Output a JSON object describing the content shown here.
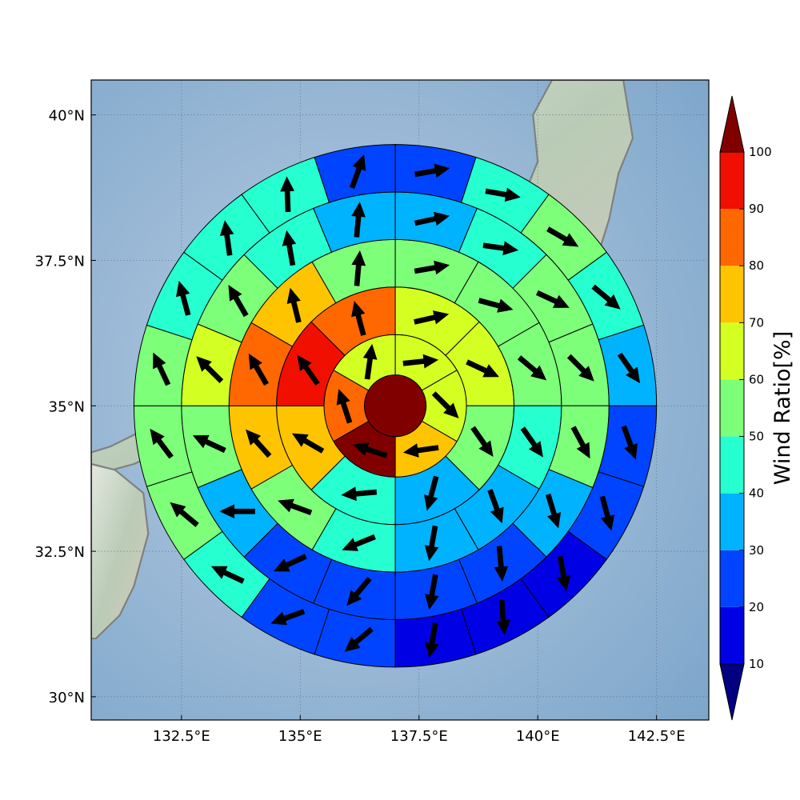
{
  "chart_data": {
    "type": "heatmap",
    "title": "",
    "map": {
      "lon_range": [
        130.6,
        143.6
      ],
      "lat_range": [
        29.6,
        40.6
      ],
      "center": [
        137.0,
        35.0
      ],
      "x_ticks": [
        132.5,
        135.0,
        137.5,
        140.0,
        142.5
      ],
      "x_tick_labels": [
        "132.5°E",
        "135°E",
        "137.5°E",
        "140°E",
        "142.5°E"
      ],
      "y_ticks": [
        30.0,
        32.5,
        35.0,
        37.5,
        40.0
      ],
      "y_tick_labels": [
        "30°N",
        "32.5°N",
        "35°N",
        "37.5°N",
        "40°N"
      ],
      "grid": true,
      "grid_style": "dotted",
      "background": "shaded relief",
      "coastline_color": "#808080"
    },
    "rings": [
      {
        "inner_radius_deg": 0.0,
        "outer_radius_deg": 0.65,
        "sectors": 1,
        "values": [
          100
        ],
        "arrow_dirs": [],
        "arrow_lengths": []
      },
      {
        "inner_radius_deg": 0.65,
        "outer_radius_deg": 1.5,
        "sectors": 6,
        "values": [
          63,
          63,
          73,
          100,
          83,
          63
        ],
        "arrow_dirs": [
          84,
          135,
          262,
          288,
          342,
          8
        ],
        "arrow_lengths": [
          0.75,
          0.75,
          0.75,
          0.75,
          0.75,
          0.75
        ]
      },
      {
        "inner_radius_deg": 1.5,
        "outer_radius_deg": 2.5,
        "sectors": 8,
        "values": [
          63,
          63,
          53,
          33,
          43,
          73,
          93,
          83
        ],
        "arrow_dirs": [
          77,
          115,
          145,
          195,
          265,
          300,
          325,
          345
        ],
        "arrow_lengths": [
          0.75,
          0.75,
          0.75,
          0.75,
          0.75,
          0.75,
          0.75,
          0.75
        ]
      },
      {
        "inner_radius_deg": 2.5,
        "outer_radius_deg": 3.5,
        "sectors": 12,
        "values": [
          53,
          53,
          53,
          43,
          33,
          33,
          43,
          53,
          73,
          83,
          73,
          53
        ],
        "arrow_dirs": [
          80,
          105,
          130,
          145,
          160,
          190,
          248,
          290,
          318,
          330,
          346,
          5
        ],
        "arrow_lengths": [
          0.75,
          0.75,
          0.75,
          0.75,
          0.75,
          0.75,
          0.75,
          0.75,
          0.75,
          0.75,
          0.75,
          0.75
        ]
      },
      {
        "inner_radius_deg": 3.5,
        "outer_radius_deg": 4.5,
        "sectors": 16,
        "values": [
          33,
          43,
          53,
          53,
          53,
          33,
          23,
          23,
          23,
          23,
          33,
          53,
          63,
          53,
          43,
          33
        ],
        "arrow_dirs": [
          78,
          98,
          115,
          135,
          152,
          163,
          175,
          190,
          220,
          245,
          270,
          295,
          315,
          330,
          350,
          5
        ],
        "arrow_lengths": [
          0.75,
          0.75,
          0.75,
          0.75,
          0.75,
          0.75,
          0.75,
          0.75,
          0.75,
          0.75,
          0.75,
          0.75,
          0.75,
          0.75,
          0.75,
          0.75
        ]
      },
      {
        "inner_radius_deg": 4.5,
        "outer_radius_deg": 5.5,
        "sectors": 20,
        "values": [
          23,
          43,
          53,
          43,
          33,
          23,
          23,
          13,
          13,
          13,
          23,
          23,
          43,
          53,
          53,
          53,
          43,
          43,
          43,
          23
        ],
        "arrow_dirs": [
          80,
          100,
          120,
          130,
          145,
          160,
          165,
          170,
          175,
          190,
          230,
          250,
          295,
          310,
          323,
          335,
          345,
          352,
          358,
          20
        ],
        "arrow_lengths": [
          0.75,
          0.75,
          0.75,
          0.75,
          0.75,
          0.75,
          0.75,
          0.75,
          0.75,
          0.75,
          0.75,
          0.75,
          0.75,
          0.75,
          0.75,
          0.75,
          0.75,
          0.75,
          0.75,
          0.75
        ]
      }
    ],
    "colorbar": {
      "label": "Wind Ratio[%]",
      "ticks": [
        10,
        20,
        30,
        40,
        50,
        60,
        70,
        80,
        90,
        100
      ],
      "boundaries": [
        10,
        20,
        30,
        40,
        50,
        60,
        70,
        80,
        90,
        100
      ],
      "colors": [
        "#0000e5",
        "#0044ff",
        "#00b3ff",
        "#26ffd0",
        "#7dff79",
        "#d4ff22",
        "#ffc400",
        "#ff6800",
        "#f00f00"
      ],
      "under_color": "#000080",
      "over_color": "#800000",
      "extend": "both"
    }
  }
}
